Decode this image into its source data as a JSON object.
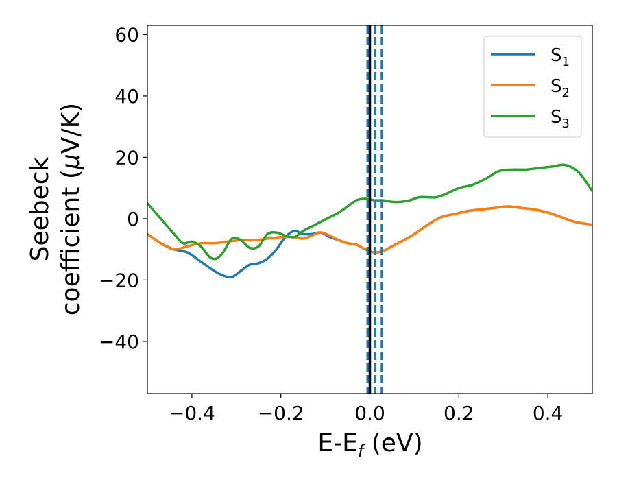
{
  "chart_data": {
    "type": "line",
    "title": "",
    "xlabel": {
      "main": "E-E",
      "sub": "f",
      "tail": " (eV)"
    },
    "ylabel": {
      "line1": "Seebeck",
      "line2_pre": "coefficient  (",
      "mu": "μ",
      "line2_post": "V/K)"
    },
    "xlim": [
      -0.5,
      0.5
    ],
    "ylim": [
      -57,
      63
    ],
    "xticks": [
      -0.4,
      -0.2,
      0.0,
      0.2,
      0.4
    ],
    "xtick_labels": [
      "−0.4",
      "−0.2",
      "0.0",
      "0.2",
      "0.4"
    ],
    "yticks": [
      -40,
      -20,
      0,
      20,
      40,
      60
    ],
    "ytick_labels": [
      "−40",
      "−20",
      "0",
      "20",
      "40",
      "60"
    ],
    "grid": false,
    "legend_position": "top-right",
    "vertical_lines": [
      {
        "x": -0.005,
        "style": "dashed",
        "color": "#1f77b4"
      },
      {
        "x": 0.012,
        "style": "dashed",
        "color": "#1f77b4"
      },
      {
        "x": 0.027,
        "style": "dashed",
        "color": "#1f77b4"
      },
      {
        "x": 0.0,
        "style": "solid",
        "color": "#000000"
      }
    ],
    "series": [
      {
        "name": "S",
        "subscript": "1",
        "color": "#1f77b4",
        "x": [
          -0.5,
          -0.47,
          -0.44,
          -0.41,
          -0.38,
          -0.35,
          -0.33,
          -0.31,
          -0.29,
          -0.27,
          -0.25,
          -0.23,
          -0.21,
          -0.19,
          -0.17,
          -0.15,
          -0.13,
          -0.11,
          -0.09,
          -0.07,
          -0.05,
          -0.03,
          -0.01,
          0.01,
          0.03,
          0.05,
          0.07,
          0.1,
          0.13,
          0.16,
          0.19,
          0.22,
          0.25,
          0.28,
          0.31,
          0.34,
          0.37,
          0.4,
          0.43,
          0.46,
          0.5
        ],
        "y": [
          -5,
          -8,
          -10,
          -11,
          -14,
          -17,
          -18.5,
          -19,
          -17,
          -15,
          -14.5,
          -13,
          -10,
          -6,
          -4,
          -5,
          -5,
          -4.5,
          -6,
          -7,
          -8,
          -8.5,
          -10,
          -11,
          -10.5,
          -9,
          -7.5,
          -5,
          -2,
          0.5,
          1.5,
          2.5,
          3,
          3.5,
          4,
          3.5,
          3,
          2,
          0.5,
          -1,
          -2
        ]
      },
      {
        "name": "S",
        "subscript": "2",
        "color": "#ff7f0e",
        "x": [
          -0.5,
          -0.47,
          -0.44,
          -0.41,
          -0.38,
          -0.35,
          -0.32,
          -0.29,
          -0.26,
          -0.23,
          -0.2,
          -0.17,
          -0.15,
          -0.13,
          -0.11,
          -0.09,
          -0.07,
          -0.05,
          -0.03,
          -0.01,
          0.01,
          0.03,
          0.05,
          0.07,
          0.1,
          0.13,
          0.16,
          0.19,
          0.22,
          0.25,
          0.28,
          0.31,
          0.34,
          0.37,
          0.4,
          0.43,
          0.46,
          0.5
        ],
        "y": [
          -5,
          -8,
          -10,
          -9,
          -8,
          -8,
          -7.5,
          -7,
          -7,
          -6.5,
          -6,
          -6,
          -6.5,
          -5.5,
          -4.5,
          -5.5,
          -7,
          -8,
          -8.5,
          -10,
          -11,
          -10.5,
          -9,
          -7.5,
          -5,
          -2,
          0.5,
          1.5,
          2.5,
          3,
          3.5,
          4,
          3.5,
          3,
          2,
          0.5,
          -1,
          -2
        ]
      },
      {
        "name": "S",
        "subscript": "3",
        "color": "#2ca02c",
        "x": [
          -0.5,
          -0.47,
          -0.44,
          -0.42,
          -0.4,
          -0.38,
          -0.36,
          -0.345,
          -0.33,
          -0.31,
          -0.29,
          -0.27,
          -0.25,
          -0.23,
          -0.21,
          -0.19,
          -0.17,
          -0.15,
          -0.13,
          -0.11,
          -0.09,
          -0.07,
          -0.05,
          -0.03,
          -0.01,
          0.01,
          0.03,
          0.05,
          0.07,
          0.09,
          0.11,
          0.13,
          0.15,
          0.17,
          0.2,
          0.23,
          0.26,
          0.29,
          0.32,
          0.35,
          0.38,
          0.41,
          0.44,
          0.47,
          0.5
        ],
        "y": [
          5,
          0,
          -5,
          -8,
          -7.5,
          -9,
          -12.5,
          -13,
          -11,
          -6.5,
          -7,
          -9.5,
          -9,
          -5,
          -4.5,
          -5.5,
          -6,
          -4,
          -2.5,
          -1,
          0.5,
          2,
          4,
          6,
          6.5,
          6,
          6,
          5.5,
          5.5,
          6,
          7,
          7,
          7,
          8,
          10,
          11,
          13,
          15.5,
          16,
          16,
          16.5,
          17,
          17.5,
          15,
          9
        ]
      }
    ]
  }
}
